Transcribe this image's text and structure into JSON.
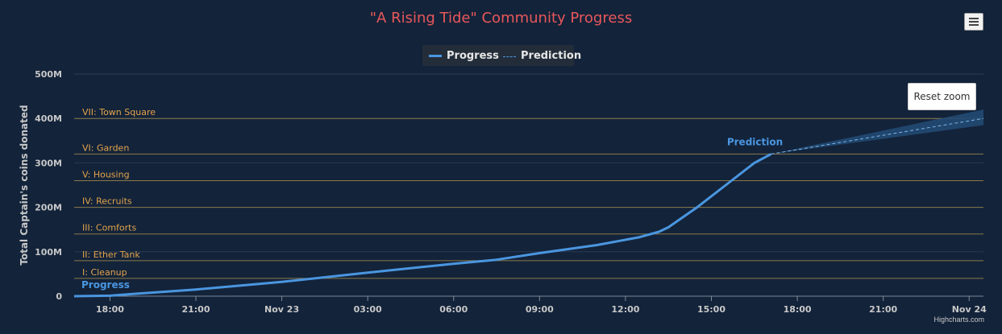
{
  "title": "\"A Rising Tide\" Community Progress",
  "legend": {
    "progress": "Progress",
    "prediction": "Prediction"
  },
  "toolbar": {
    "menu_icon": "hamburger-menu-icon",
    "reset_zoom": "Reset zoom"
  },
  "credits": "Highcharts.com",
  "colors": {
    "progress": "#4a96e0",
    "prediction": "#4a96e0",
    "band": "#224a73",
    "plotline": "#8a7a48",
    "plotline_label": "#e3a44b",
    "title": "#e8575a",
    "background": "#13233a"
  },
  "chart_data": {
    "type": "line",
    "title": "\"A Rising Tide\" Community Progress",
    "ylabel": "Total Captain's coins donated",
    "ylim": [
      0,
      500
    ],
    "y_unit": "M",
    "y_ticks": [
      0,
      100,
      200,
      300,
      400,
      500
    ],
    "y_tick_labels": [
      "0",
      "100M",
      "200M",
      "300M",
      "400M",
      "500M"
    ],
    "x_range": [
      "Nov 22 16:45",
      "Nov 24 00:30"
    ],
    "x_ticks": [
      {
        "t": "Nov 22 18:00",
        "label": "18:00"
      },
      {
        "t": "Nov 22 21:00",
        "label": "21:00"
      },
      {
        "t": "Nov 23 00:00",
        "label": "Nov 23"
      },
      {
        "t": "Nov 23 03:00",
        "label": "03:00"
      },
      {
        "t": "Nov 23 06:00",
        "label": "06:00"
      },
      {
        "t": "Nov 23 09:00",
        "label": "09:00"
      },
      {
        "t": "Nov 23 12:00",
        "label": "12:00"
      },
      {
        "t": "Nov 23 15:00",
        "label": "15:00"
      },
      {
        "t": "Nov 23 18:00",
        "label": "18:00"
      },
      {
        "t": "Nov 23 21:00",
        "label": "21:00"
      },
      {
        "t": "Nov 24 00:00",
        "label": "Nov 24"
      }
    ],
    "plot_lines": [
      {
        "value": 40,
        "label": "I: Cleanup"
      },
      {
        "value": 80,
        "label": "II: Ether Tank"
      },
      {
        "value": 140,
        "label": "III: Comforts"
      },
      {
        "value": 200,
        "label": "IV: Recruits"
      },
      {
        "value": 260,
        "label": "V: Housing"
      },
      {
        "value": 320,
        "label": "VI: Garden"
      },
      {
        "value": 400,
        "label": "VII: Town Square"
      }
    ],
    "series": [
      {
        "name": "Progress",
        "label": "Progress",
        "style": "solid",
        "points": [
          [
            "Nov 22 16:45",
            0
          ],
          [
            "Nov 22 18:00",
            1
          ],
          [
            "Nov 22 19:00",
            6
          ],
          [
            "Nov 22 21:00",
            15
          ],
          [
            "Nov 23 00:00",
            32
          ],
          [
            "Nov 23 03:00",
            53
          ],
          [
            "Nov 23 06:00",
            73
          ],
          [
            "Nov 23 07:30",
            82
          ],
          [
            "Nov 23 09:00",
            97
          ],
          [
            "Nov 23 11:00",
            115
          ],
          [
            "Nov 23 12:30",
            133
          ],
          [
            "Nov 23 13:10",
            145
          ],
          [
            "Nov 23 13:30",
            155
          ],
          [
            "Nov 23 14:30",
            200
          ],
          [
            "Nov 23 15:30",
            250
          ],
          [
            "Nov 23 16:30",
            300
          ],
          [
            "Nov 23 17:05",
            320
          ]
        ]
      },
      {
        "name": "Prediction",
        "label": "Prediction",
        "style": "dashed",
        "points": [
          [
            "Nov 23 17:05",
            320
          ],
          [
            "Nov 24 00:30",
            400
          ]
        ],
        "range": [
          [
            "Nov 23 17:05",
            320,
            320
          ],
          [
            "Nov 24 00:30",
            385,
            420
          ]
        ]
      }
    ]
  }
}
